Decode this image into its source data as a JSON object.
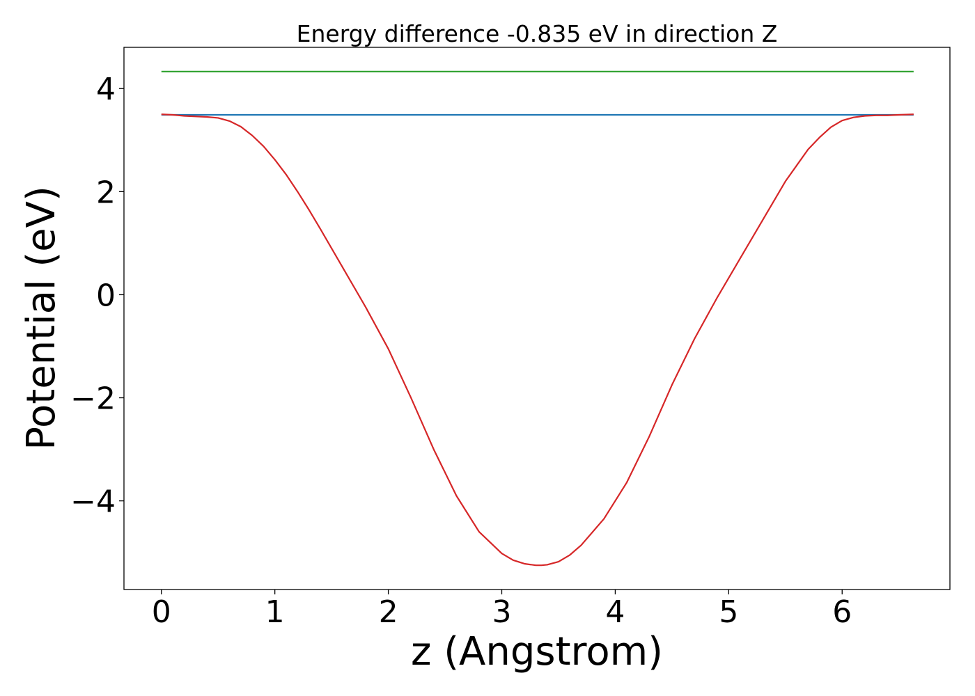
{
  "chart_data": {
    "type": "line",
    "title": "Energy difference -0.835 eV in direction Z",
    "xlabel": "z (Angstrom)",
    "ylabel": "Potential (eV)",
    "xlim": [
      -0.33,
      6.95
    ],
    "ylim": [
      -5.72,
      4.8
    ],
    "xticks": [
      0,
      1,
      2,
      3,
      4,
      5,
      6
    ],
    "xtick_labels": [
      "0",
      "1",
      "2",
      "3",
      "4",
      "5",
      "6"
    ],
    "yticks": [
      -4,
      -2,
      0,
      2,
      4
    ],
    "ytick_labels": [
      "−4",
      "−2",
      "0",
      "2",
      "4"
    ],
    "grid": false,
    "legend": false,
    "series": [
      {
        "color": "#2ca02c",
        "x": [
          0,
          6.63
        ],
        "y": [
          4.33,
          4.33
        ]
      },
      {
        "color": "#1f77b4",
        "x": [
          0,
          6.63
        ],
        "y": [
          3.49,
          3.49
        ]
      },
      {
        "color": "#d62728",
        "x": [
          0,
          0.1,
          0.2,
          0.3,
          0.4,
          0.5,
          0.6,
          0.7,
          0.8,
          0.9,
          1.0,
          1.1,
          1.2,
          1.3,
          1.4,
          1.5,
          1.6,
          1.8,
          2.0,
          2.2,
          2.4,
          2.6,
          2.8,
          3.0,
          3.1,
          3.2,
          3.3,
          3.35,
          3.4,
          3.5,
          3.6,
          3.7,
          3.9,
          4.1,
          4.3,
          4.5,
          4.7,
          4.9,
          5.1,
          5.3,
          5.5,
          5.7,
          5.8,
          5.9,
          6.0,
          6.1,
          6.2,
          6.3,
          6.4,
          6.5,
          6.63
        ],
        "y": [
          3.5,
          3.49,
          3.47,
          3.46,
          3.45,
          3.43,
          3.37,
          3.26,
          3.09,
          2.88,
          2.62,
          2.33,
          2.0,
          1.65,
          1.28,
          0.9,
          0.52,
          -0.24,
          -1.05,
          -2.0,
          -3.0,
          -3.9,
          -4.6,
          -5.02,
          -5.15,
          -5.22,
          -5.25,
          -5.25,
          -5.24,
          -5.18,
          -5.05,
          -4.86,
          -4.35,
          -3.65,
          -2.75,
          -1.75,
          -0.85,
          -0.05,
          0.7,
          1.45,
          2.2,
          2.82,
          3.05,
          3.25,
          3.38,
          3.44,
          3.47,
          3.48,
          3.48,
          3.49,
          3.5
        ]
      }
    ]
  }
}
